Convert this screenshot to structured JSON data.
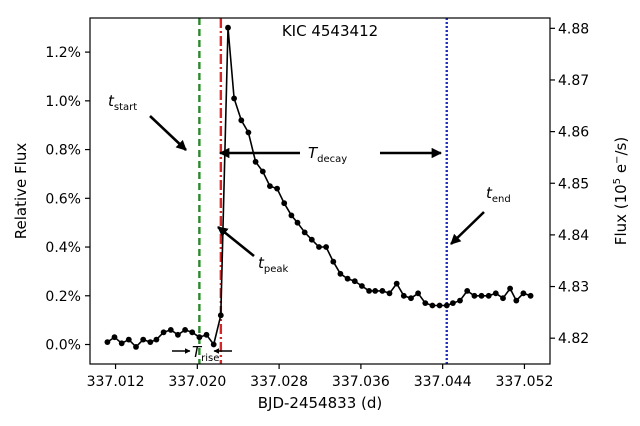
{
  "chart_data": {
    "type": "line",
    "title": "KIC 4543412",
    "xlabel": "BJD-2454833 (d)",
    "ylabel": "Relative Flux",
    "ylabel_right": "Flux (10^5 e^-/s)",
    "xlim": [
      337.0095,
      337.0545
    ],
    "ylim": [
      -0.0008,
      0.0134
    ],
    "ylim_right": [
      4.815,
      4.882
    ],
    "x_ticks": [
      337.012,
      337.02,
      337.028,
      337.036,
      337.044,
      337.052
    ],
    "x_tick_labels": [
      "337.012",
      "337.020",
      "337.028",
      "337.036",
      "337.044",
      "337.052"
    ],
    "y_ticks": [
      0.0,
      0.002,
      0.004,
      0.006,
      0.008,
      0.01,
      0.012
    ],
    "y_tick_labels": [
      "0.0%",
      "0.2%",
      "0.4%",
      "0.6%",
      "0.8%",
      "1.0%",
      "1.2%"
    ],
    "y_right_ticks": [
      4.82,
      4.83,
      4.84,
      4.85,
      4.86,
      4.87,
      4.88
    ],
    "y_right_tick_labels": [
      "4.82",
      "4.83",
      "4.84",
      "4.85",
      "4.86",
      "4.87",
      "4.88"
    ],
    "grid": false,
    "series": [
      {
        "x": [
          337.0112,
          337.0119,
          337.0126,
          337.0133,
          337.014,
          337.0147,
          337.0154,
          337.016,
          337.0167,
          337.0174,
          337.0181,
          337.0188,
          337.0195,
          337.0202,
          337.0209,
          337.0216,
          337.0223,
          337.023,
          337.0236,
          337.0243,
          337.025,
          337.0257,
          337.0264,
          337.0271,
          337.0278,
          337.0285,
          337.0292,
          337.0298,
          337.0305,
          337.0312,
          337.0319,
          337.0326,
          337.0333,
          337.034,
          337.0347,
          337.0354,
          337.0361,
          337.0368,
          337.0374,
          337.0381,
          337.0388,
          337.0395,
          337.0402,
          337.0409,
          337.0416,
          337.0423,
          337.043,
          337.0437,
          337.0444,
          337.045,
          337.0457,
          337.0464,
          337.0471,
          337.0478,
          337.0485,
          337.0492,
          337.0499,
          337.0506,
          337.0512,
          337.0519,
          337.0526
        ],
        "y": [
          0.0001,
          0.0003,
          5e-05,
          0.0002,
          -0.0001,
          0.0002,
          0.0001,
          0.0002,
          0.0005,
          0.0006,
          0.0004,
          0.0006,
          0.0005,
          0.0003,
          0.0004,
          0.0,
          0.0012,
          0.013,
          0.0101,
          0.0092,
          0.0087,
          0.0075,
          0.0071,
          0.0065,
          0.0064,
          0.0058,
          0.0053,
          0.005,
          0.0046,
          0.0043,
          0.004,
          0.004,
          0.0034,
          0.0029,
          0.0027,
          0.0026,
          0.0024,
          0.0022,
          0.0022,
          0.0022,
          0.0021,
          0.0025,
          0.002,
          0.0019,
          0.0021,
          0.0017,
          0.0016,
          0.0016,
          0.0016,
          0.0017,
          0.0018,
          0.0022,
          0.002,
          0.002,
          0.002,
          0.0021,
          0.0019,
          0.0023,
          0.0018,
          0.0021,
          0.002
        ]
      }
    ],
    "vlines": [
      {
        "x": 337.0202,
        "color": "#2a8a2a",
        "style": "dashed"
      },
      {
        "x": 337.0223,
        "color": "#d62728",
        "style": "dashdot"
      },
      {
        "x": 337.0444,
        "color": "#1f2fbf",
        "style": "dotted"
      }
    ],
    "annotations": {
      "t_start": {
        "main": "t",
        "sub": "start"
      },
      "t_peak": {
        "main": "t",
        "sub": "peak"
      },
      "t_end": {
        "main": "t",
        "sub": "end"
      },
      "T_decay": {
        "main": "T",
        "sub": "decay"
      },
      "T_rise": {
        "main": "T",
        "sub": "rise"
      }
    }
  }
}
